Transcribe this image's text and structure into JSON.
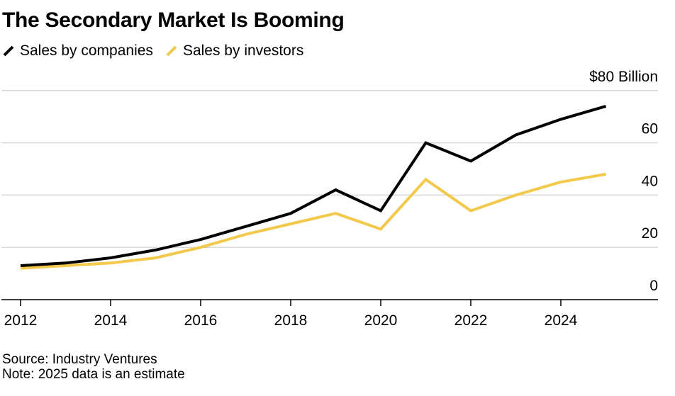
{
  "title": "The Secondary Market Is Booming",
  "legend": [
    {
      "label": "Sales by companies",
      "color": "#000000"
    },
    {
      "label": "Sales by investors",
      "color": "#f2c94c"
    }
  ],
  "footer": {
    "source": "Source: Industry Ventures",
    "note": "Note: 2025 data is an estimate"
  },
  "chart_data": {
    "type": "line",
    "title": "The Secondary Market Is Booming",
    "xlabel": "",
    "ylabel": "",
    "ylim": [
      0,
      80
    ],
    "xlim": [
      2012,
      2026
    ],
    "y_ticks": [
      0,
      20,
      40,
      60,
      80
    ],
    "y_tick_labels": [
      "0",
      "20",
      "40",
      "60",
      "$80 Billion"
    ],
    "x_ticks": [
      2012,
      2014,
      2016,
      2018,
      2020,
      2022,
      2024
    ],
    "x_tick_labels": [
      "2012",
      "2014",
      "2016",
      "2018",
      "2020",
      "2022",
      "2024"
    ],
    "grid": true,
    "axis_side": "right",
    "legend_position": "top-left",
    "x": [
      2012,
      2013,
      2014,
      2015,
      2016,
      2017,
      2018,
      2019,
      2020,
      2021,
      2022,
      2023,
      2024,
      2025
    ],
    "series": [
      {
        "name": "Sales by companies",
        "color": "#000000",
        "values": [
          13,
          14,
          16,
          19,
          23,
          28,
          33,
          42,
          34,
          60,
          53,
          63,
          69,
          74
        ]
      },
      {
        "name": "Sales by investors",
        "color": "#f2c94c",
        "values": [
          12,
          13,
          14,
          16,
          20,
          25,
          29,
          33,
          27,
          46,
          34,
          40,
          45,
          48
        ]
      }
    ]
  }
}
